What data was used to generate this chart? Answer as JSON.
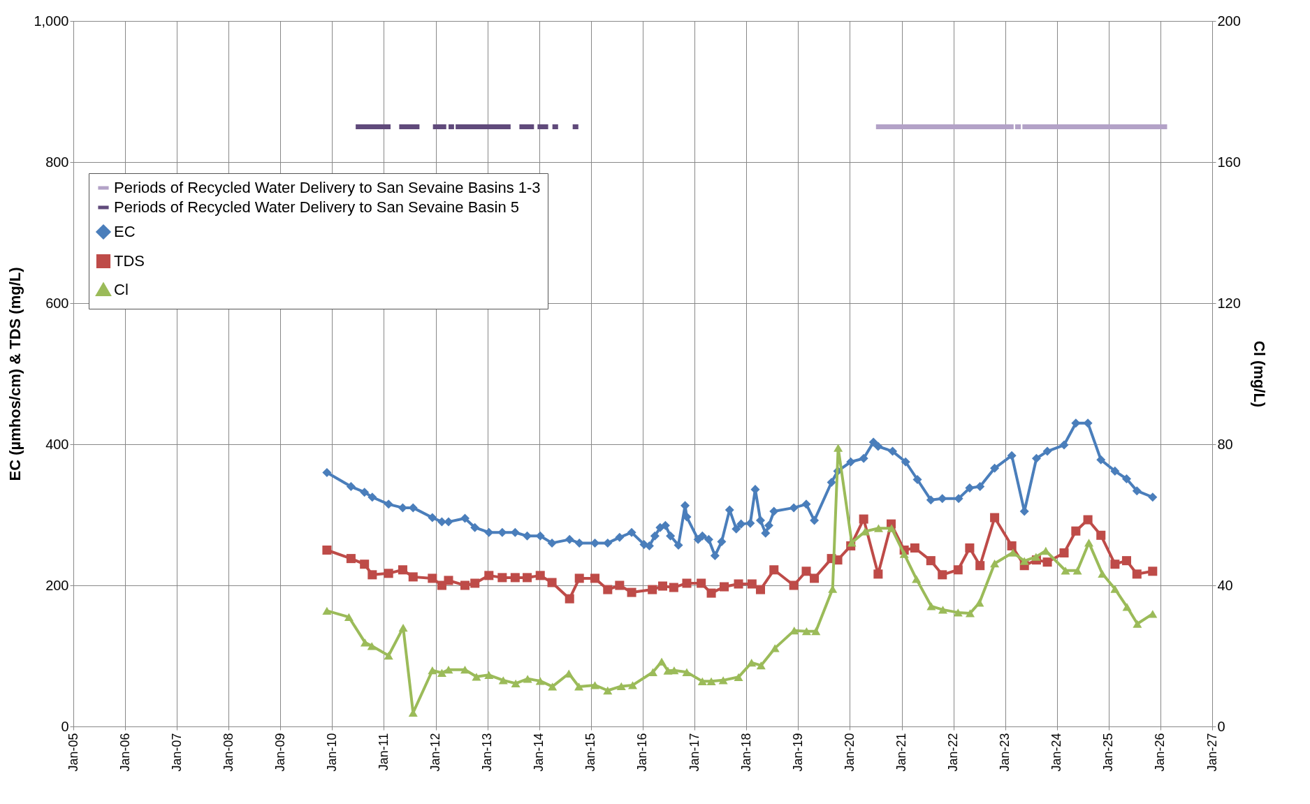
{
  "chart_data": {
    "type": "line",
    "ylabel": "EC (µmhos/cm) & TDS (mg/L)",
    "y2label": "Cl (mg/L)",
    "xlim": [
      "2005-01",
      "2027-01"
    ],
    "xticks": [
      {
        "value": "2005-01",
        "label": "Jan-05"
      },
      {
        "value": "2006-01",
        "label": "Jan-06"
      },
      {
        "value": "2007-01",
        "label": "Jan-07"
      },
      {
        "value": "2008-01",
        "label": "Jan-08"
      },
      {
        "value": "2009-01",
        "label": "Jan-09"
      },
      {
        "value": "2010-01",
        "label": "Jan-10"
      },
      {
        "value": "2011-01",
        "label": "Jan-11"
      },
      {
        "value": "2012-01",
        "label": "Jan-12"
      },
      {
        "value": "2013-01",
        "label": "Jan-13"
      },
      {
        "value": "2014-01",
        "label": "Jan-14"
      },
      {
        "value": "2015-01",
        "label": "Jan-15"
      },
      {
        "value": "2016-01",
        "label": "Jan-16"
      },
      {
        "value": "2017-01",
        "label": "Jan-17"
      },
      {
        "value": "2018-01",
        "label": "Jan-18"
      },
      {
        "value": "2019-01",
        "label": "Jan-19"
      },
      {
        "value": "2020-01",
        "label": "Jan-20"
      },
      {
        "value": "2021-01",
        "label": "Jan-21"
      },
      {
        "value": "2022-01",
        "label": "Jan-22"
      },
      {
        "value": "2023-01",
        "label": "Jan-23"
      },
      {
        "value": "2024-01",
        "label": "Jan-24"
      },
      {
        "value": "2025-01",
        "label": "Jan-25"
      },
      {
        "value": "2026-01",
        "label": "Jan-26"
      },
      {
        "value": "2027-01",
        "label": "Jan-27"
      }
    ],
    "ylim": [
      0,
      1000
    ],
    "yticks": [
      0,
      200,
      400,
      600,
      800,
      {
        "value": 1000,
        "label": "1,000"
      }
    ],
    "y2lim": [
      0,
      200
    ],
    "y2ticks": [
      0,
      40,
      80,
      120,
      160,
      200
    ],
    "grid": true,
    "legend": "top left",
    "series": [
      {
        "name": "Periods of Recycled Water Delivery to San Sevaine Basins 1-3",
        "color": "#b3a2c7",
        "marker": "none",
        "x": [
          "2020-07-04",
          "2023-03-02",
          null,
          "2023-03-13",
          "2023-04-22",
          null,
          "2023-05-03",
          "2026-02-17"
        ],
        "values": [
          850,
          850,
          null,
          850,
          850,
          null,
          850,
          850
        ]
      },
      {
        "name": "Periods of Recycled Water Delivery to San Sevaine Basin 5",
        "color": "#604a7b",
        "marker": "none",
        "x": [
          "2010-06-16",
          "2011-02-17",
          null,
          "2011-04-19",
          "2011-09-09",
          null,
          "2011-12-13",
          "2012-03-16",
          null,
          "2012-04-01",
          "2012-05-10",
          null,
          "2012-05-21",
          "2013-06-13",
          null,
          "2013-08-14",
          "2013-11-25",
          null,
          "2013-12-20",
          "2014-03-05",
          null,
          "2014-04-04",
          "2014-05-14",
          null,
          "2014-08-25",
          "2014-10-04"
        ],
        "values": [
          850,
          850,
          null,
          850,
          850,
          null,
          850,
          850,
          null,
          850,
          850,
          null,
          850,
          850,
          null,
          850,
          850,
          null,
          850,
          850,
          null,
          850,
          850,
          null,
          850,
          850
        ]
      },
      {
        "name": "EC",
        "color": "#4a7ebb",
        "marker": "diamond",
        "x": [
          "2009-11-25",
          "2010-05-14",
          "2010-08-17",
          "2010-10-11",
          "2011-02-03",
          "2011-05-14",
          "2011-07-26",
          "2011-12-09",
          "2012-02-14",
          "2012-04-01",
          "2012-07-26",
          "2012-10-04",
          "2013-01-11",
          "2013-04-15",
          "2013-07-15",
          "2013-10-08",
          "2014-01-08",
          "2014-04-01",
          "2014-08-03",
          "2014-10-11",
          "2015-01-29",
          "2015-04-29",
          "2015-07-22",
          "2015-10-15",
          "2016-01-11",
          "2016-02-17",
          "2016-03-27",
          "2016-05-03",
          "2016-06-09",
          "2016-07-15",
          "2016-09-09",
          "2016-10-26",
          "2016-11-07",
          "2017-01-26",
          "2017-02-25",
          "2017-04-11",
          "2017-05-25",
          "2017-07-11",
          "2017-09-05",
          "2017-10-22",
          "2017-11-25",
          "2018-01-29",
          "2018-03-05",
          "2018-04-11",
          "2018-05-17",
          "2018-06-09",
          "2018-07-15",
          "2018-12-02",
          "2019-02-28",
          "2019-04-26",
          "2019-08-25",
          "2019-10-08",
          "2020-01-08",
          "2020-04-08",
          "2020-06-16",
          "2020-07-19",
          "2020-10-29",
          "2021-01-29",
          "2021-04-22",
          "2021-07-26",
          "2021-10-15",
          "2022-02-07",
          "2022-04-26",
          "2022-07-08",
          "2022-10-19",
          "2023-02-17",
          "2023-05-17",
          "2023-08-10",
          "2023-10-26",
          "2024-02-21",
          "2024-05-14",
          "2024-08-07",
          "2024-11-07",
          "2025-02-14",
          "2025-05-07",
          "2025-07-19",
          "2025-11-07"
        ],
        "values": [
          360,
          340,
          332,
          325,
          315,
          310,
          310,
          296,
          290,
          290,
          295,
          282,
          275,
          275,
          275,
          270,
          270,
          260,
          265,
          260,
          260,
          260,
          268,
          275,
          258,
          256,
          270,
          282,
          285,
          270,
          257,
          313,
          297,
          265,
          270,
          265,
          242,
          262,
          307,
          280,
          287,
          288,
          336,
          292,
          274,
          285,
          305,
          310,
          315,
          292,
          346,
          362,
          375,
          380,
          403,
          397,
          390,
          375,
          350,
          321,
          323,
          323,
          338,
          340,
          366,
          384,
          305,
          380,
          390,
          399,
          430,
          430,
          378,
          362,
          351,
          334,
          325
        ]
      },
      {
        "name": "TDS",
        "color": "#be4b48",
        "marker": "square",
        "x": [
          "2009-11-25",
          "2010-05-14",
          "2010-08-17",
          "2010-10-11",
          "2011-02-03",
          "2011-05-14",
          "2011-07-26",
          "2011-12-09",
          "2012-02-14",
          "2012-04-01",
          "2012-07-26",
          "2012-10-04",
          "2013-01-11",
          "2013-04-15",
          "2013-07-15",
          "2013-10-08",
          "2014-01-08",
          "2014-04-01",
          "2014-08-03",
          "2014-10-11",
          "2015-01-29",
          "2015-04-29",
          "2015-07-22",
          "2015-10-15",
          "2016-03-09",
          "2016-05-21",
          "2016-08-07",
          "2016-11-07",
          "2017-02-17",
          "2017-04-29",
          "2017-07-29",
          "2017-11-07",
          "2018-02-10",
          "2018-04-11",
          "2018-07-15",
          "2018-12-02",
          "2019-02-28",
          "2019-04-26",
          "2019-08-25",
          "2019-10-08",
          "2020-01-08",
          "2020-04-08",
          "2020-07-19",
          "2020-10-19",
          "2021-01-19",
          "2021-04-04",
          "2021-07-26",
          "2021-10-15",
          "2022-02-03",
          "2022-04-26",
          "2022-07-08",
          "2022-10-19",
          "2023-02-17",
          "2023-05-17",
          "2023-08-10",
          "2023-10-26",
          "2024-02-21",
          "2024-05-14",
          "2024-08-07",
          "2024-11-07",
          "2025-02-14",
          "2025-05-07",
          "2025-07-19",
          "2025-11-07"
        ],
        "values": [
          250,
          238,
          230,
          215,
          217,
          222,
          212,
          210,
          200,
          207,
          200,
          203,
          214,
          211,
          211,
          211,
          214,
          204,
          181,
          210,
          210,
          194,
          200,
          190,
          194,
          199,
          197,
          203,
          203,
          189,
          198,
          202,
          202,
          194,
          222,
          200,
          220,
          210,
          238,
          236,
          256,
          294,
          216,
          287,
          250,
          253,
          235,
          215,
          222,
          253,
          228,
          296,
          256,
          228,
          236,
          233,
          246,
          277,
          293,
          271,
          230,
          235,
          216,
          220
        ]
      },
      {
        "name": "Cl",
        "color": "#9bbb59",
        "marker": "triangle",
        "axis": "y2",
        "x": [
          "2009-11-25",
          "2010-04-29",
          "2010-08-21",
          "2010-10-08",
          "2011-02-03",
          "2011-05-17",
          "2011-07-26",
          "2011-12-09",
          "2012-02-14",
          "2012-04-01",
          "2012-07-26",
          "2012-10-15",
          "2013-01-11",
          "2013-04-22",
          "2013-07-19",
          "2013-10-11",
          "2014-01-08",
          "2014-04-04",
          "2014-07-29",
          "2014-10-08",
          "2015-01-29",
          "2015-04-29",
          "2015-08-03",
          "2015-10-22",
          "2016-03-13",
          "2016-05-14",
          "2016-06-27",
          "2016-08-10",
          "2016-11-07",
          "2017-02-25",
          "2017-04-29",
          "2017-07-22",
          "2017-11-07",
          "2018-02-07",
          "2018-04-15",
          "2018-07-22",
          "2018-12-05",
          "2019-03-02",
          "2019-05-07",
          "2019-09-02",
          "2019-10-11",
          "2020-01-15",
          "2020-04-19",
          "2020-07-22",
          "2020-10-22",
          "2021-01-19",
          "2021-04-15",
          "2021-07-29",
          "2021-10-19",
          "2022-02-03",
          "2022-04-29",
          "2022-07-04",
          "2022-10-19",
          "2023-02-25",
          "2023-05-17",
          "2023-08-07",
          "2023-10-15",
          "2024-03-02",
          "2024-05-25",
          "2024-08-14",
          "2024-11-17",
          "2025-02-14",
          "2025-05-10",
          "2025-07-22",
          "2025-11-07"
        ],
        "values": [
          32.8,
          31.0,
          23.8,
          22.8,
          20.1,
          28.0,
          3.9,
          15.9,
          15.2,
          16.1,
          16.1,
          14.1,
          14.6,
          13.1,
          12.2,
          13.5,
          12.9,
          11.3,
          15.0,
          11.3,
          11.7,
          10.2,
          11.4,
          11.7,
          15.4,
          18.4,
          15.8,
          15.9,
          15.4,
          12.8,
          12.8,
          13.1,
          14.0,
          18.1,
          17.3,
          22.2,
          27.2,
          27.0,
          27.0,
          39.0,
          79.0,
          52.1,
          55.3,
          56.2,
          56.2,
          48.9,
          41.8,
          34.1,
          33.1,
          32.3,
          32.1,
          35.1,
          46.2,
          49.3,
          46.9,
          48.1,
          49.8,
          44.2,
          44.2,
          52.1,
          43.3,
          39.0,
          33.9,
          29.1,
          31.9
        ]
      }
    ]
  }
}
